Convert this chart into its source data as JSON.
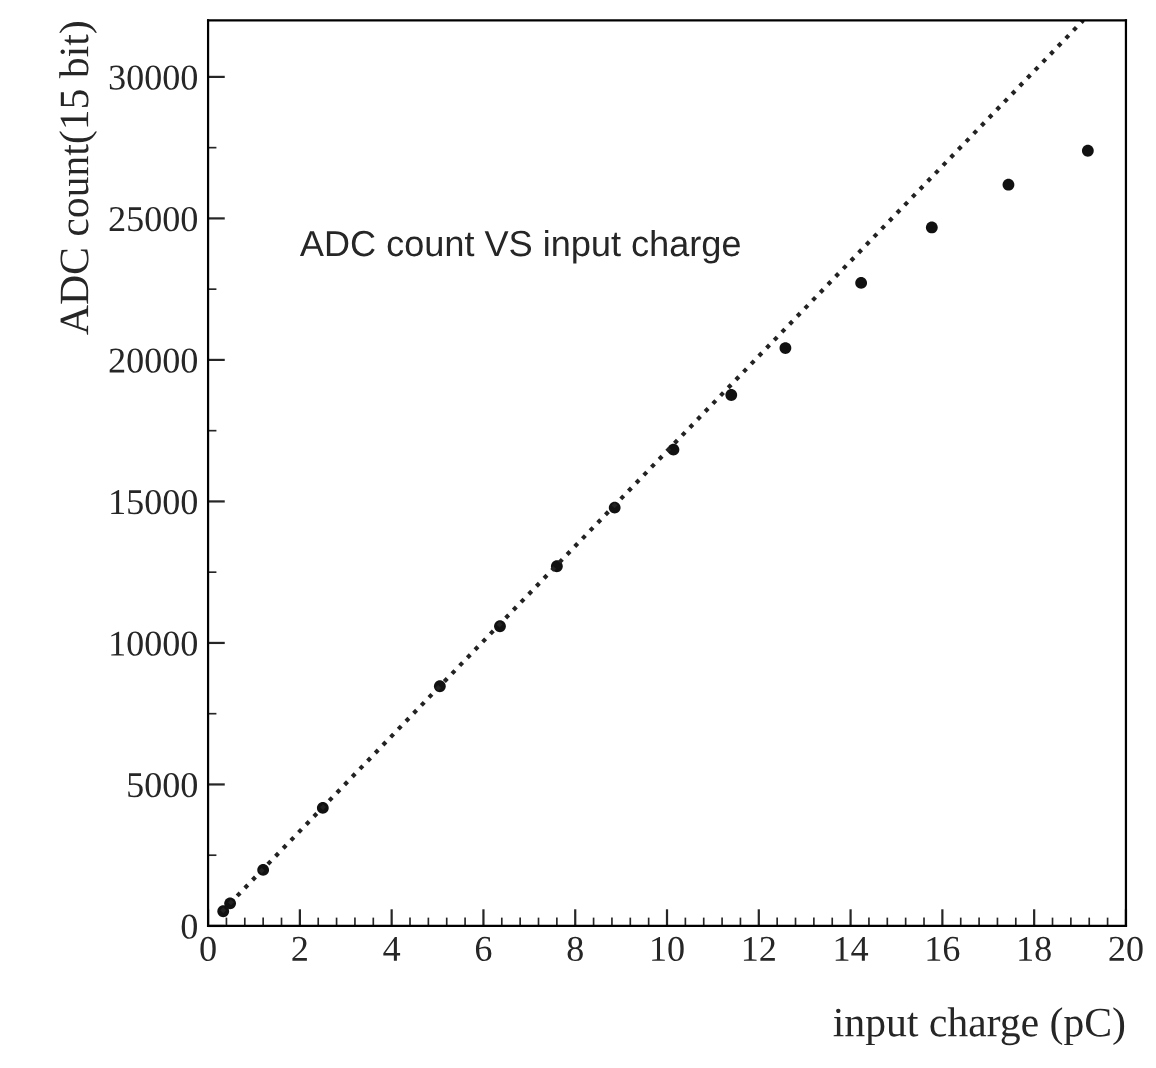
{
  "chart_data": {
    "type": "scatter",
    "xlabel": "input charge (pC)",
    "ylabel": "ADC count(15 bit)",
    "annotations": [
      "ADC count VS input charge"
    ],
    "xlim": [
      0,
      20
    ],
    "xticks": [
      0,
      2,
      4,
      6,
      8,
      10,
      12,
      14,
      16,
      18,
      20
    ],
    "ylim": [
      0,
      32000
    ],
    "yticks": [
      0,
      5000,
      10000,
      15000,
      20000,
      25000,
      30000
    ],
    "grid": false,
    "legend": false,
    "series": [
      {
        "color": "#111111",
        "marker": "circle",
        "x": [
          0.33,
          0.48,
          1.2,
          2.5,
          5.05,
          6.36,
          7.6,
          8.86,
          10.14,
          11.4,
          12.58,
          14.23,
          15.77,
          17.44,
          19.17
        ],
        "values": [
          520,
          800,
          1980,
          4170,
          8470,
          10590,
          12710,
          14780,
          16830,
          18760,
          20420,
          22720,
          24680,
          26190,
          27390
        ]
      },
      {
        "type": "line",
        "color": "#222222",
        "line_style": "dotted",
        "x": [
          0.3,
          19.07
        ],
        "values": [
          500,
          32000
        ]
      }
    ]
  }
}
